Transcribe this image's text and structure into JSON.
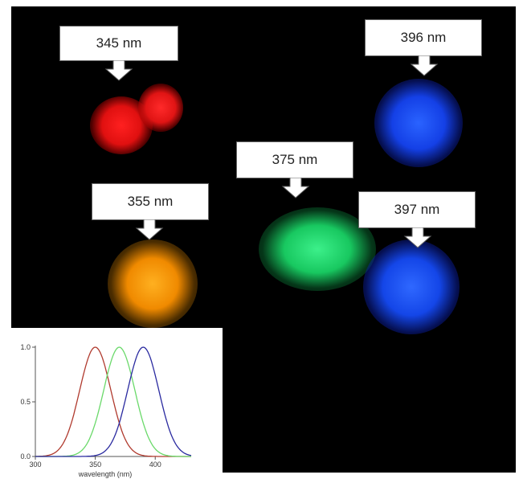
{
  "labels": {
    "l345": "345 nm",
    "l396": "396 nm",
    "l375": "375 nm",
    "l355": "355 nm",
    "l397": "397 nm"
  },
  "spot_colors": {
    "red": "#ff1a1a",
    "orange": "#ff9900",
    "green": "#22e070",
    "blue1": "#1447ff",
    "blue2": "#1450ff"
  },
  "chart_data": {
    "type": "line",
    "xlabel": "wavelength (nm)",
    "ylabel": "",
    "xlim": [
      300,
      430
    ],
    "ylim": [
      0,
      1.0
    ],
    "x_ticks": [
      300,
      350,
      400
    ],
    "y_ticks": [
      0.0,
      0.5,
      1.0
    ],
    "grid": false,
    "series": [
      {
        "color": "#b03a2e",
        "peak": 350,
        "sigma": 13
      },
      {
        "color": "#6ad96a",
        "peak": 370,
        "sigma": 13
      },
      {
        "color": "#2a2aa0",
        "peak": 390,
        "sigma": 13
      }
    ]
  }
}
